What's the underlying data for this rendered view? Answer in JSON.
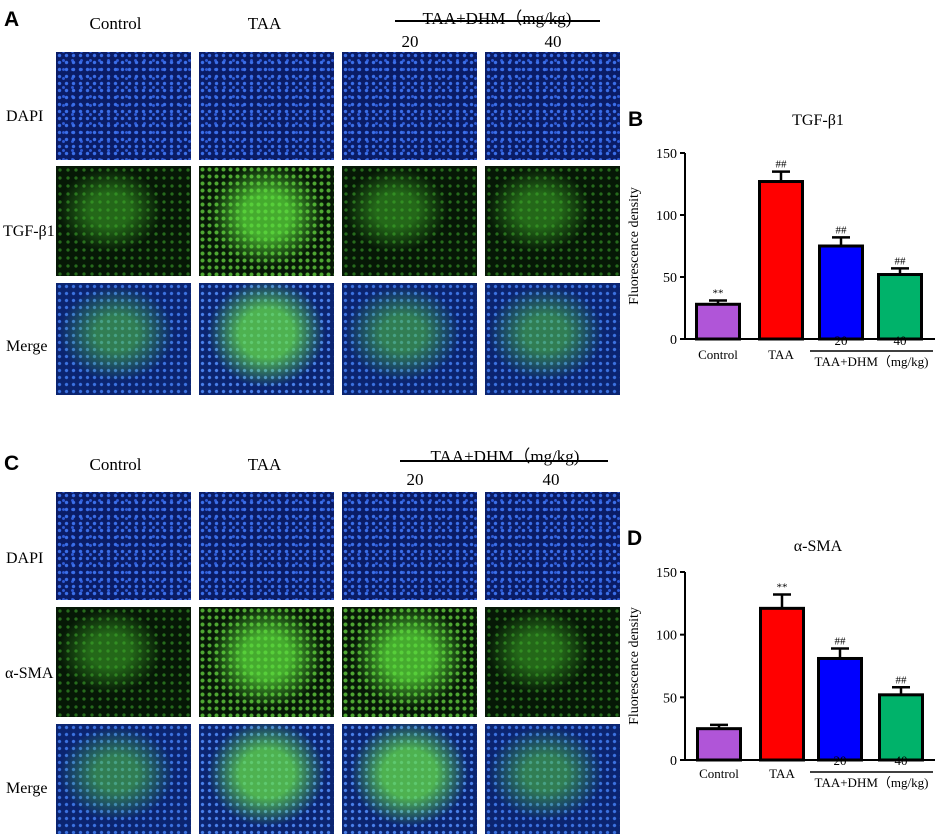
{
  "panels": {
    "A": {
      "letter": "A",
      "columns": [
        "Control",
        "TAA",
        "20",
        "40"
      ],
      "group_label": "TAA+DHM（mg/kg)",
      "rows": [
        "DAPI",
        "TGF-β1",
        "Merge"
      ]
    },
    "C": {
      "letter": "C",
      "columns": [
        "Control",
        "TAA",
        "20",
        "40"
      ],
      "group_label": "TAA+DHM（mg/kg)",
      "rows": [
        "DAPI",
        "α-SMA",
        "Merge"
      ]
    },
    "B": {
      "letter": "B"
    },
    "D": {
      "letter": "D"
    }
  },
  "chart_data": [
    {
      "type": "bar",
      "title": "TGF-β1",
      "ylabel": "Fluorescence density",
      "xlabel": "",
      "categories": [
        "Control",
        "TAA",
        "20",
        "40"
      ],
      "group_label": "TAA+DHM（mg/kg)",
      "values": [
        28,
        127,
        75,
        52
      ],
      "errors": [
        3,
        8,
        7,
        5
      ],
      "annotations": [
        "**",
        "##",
        "##",
        "##"
      ],
      "colors": [
        "#b055d8",
        "#ff0000",
        "#0000ff",
        "#00b26a"
      ],
      "ylim": [
        0,
        150
      ],
      "yticks": [
        0,
        50,
        100,
        150
      ]
    },
    {
      "type": "bar",
      "title": "α-SMA",
      "ylabel": "Fluorescence density",
      "xlabel": "",
      "categories": [
        "Control",
        "TAA",
        "20",
        "40"
      ],
      "group_label": "TAA+DHM（mg/kg)",
      "values": [
        25,
        121,
        81,
        52
      ],
      "errors": [
        3,
        11,
        8,
        6
      ],
      "annotations": [
        "",
        "**",
        "##",
        "##"
      ],
      "colors": [
        "#b055d8",
        "#ff0000",
        "#0000ff",
        "#00b26a"
      ],
      "ylim": [
        0,
        150
      ],
      "yticks": [
        0,
        50,
        100,
        150
      ]
    }
  ]
}
